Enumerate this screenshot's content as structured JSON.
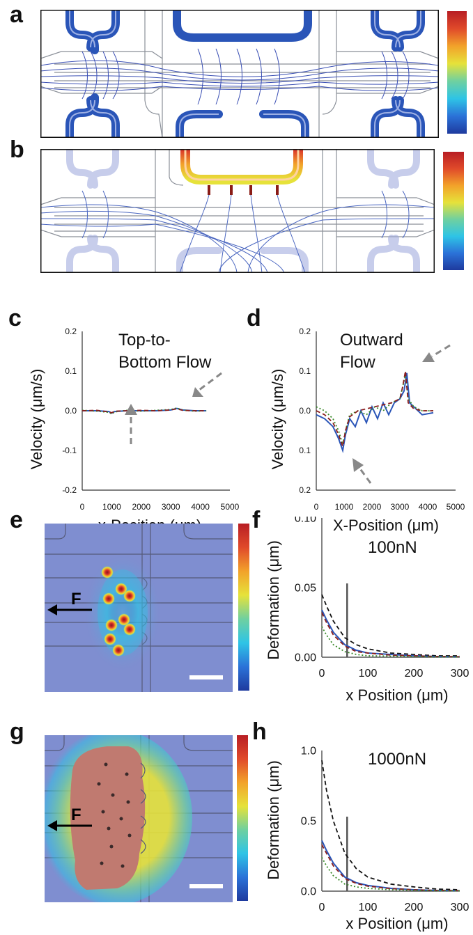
{
  "panels": {
    "a": {
      "letter": "a"
    },
    "b": {
      "letter": "b"
    },
    "c": {
      "letter": "c"
    },
    "d": {
      "letter": "d"
    },
    "e": {
      "letter": "e",
      "force_label": "F"
    },
    "f": {
      "letter": "f"
    },
    "g": {
      "letter": "g",
      "force_label": "F"
    },
    "h": {
      "letter": "h"
    }
  },
  "colors": {
    "channel_blue": "#2a55b8",
    "streamline_blue": "#3a4fb4",
    "substrate_blue": "#7f8ed0",
    "deformation_red": "#c07a70",
    "jet": [
      "#1e3a9e",
      "#2b72d8",
      "#2ec4e6",
      "#6fd0a0",
      "#e6e23a",
      "#f2a22a",
      "#d9302a",
      "#b81e24"
    ]
  },
  "chart_data": [
    {
      "panel": "c",
      "type": "line",
      "title": "Top-to- Bottom Flow",
      "title_lines": [
        "Top-to-",
        "Bottom Flow"
      ],
      "xlabel": "x-Position (μm)",
      "ylabel": "Velocity (μm/s)",
      "xlim": [
        0,
        5000
      ],
      "ylim": [
        -0.2,
        0.2
      ],
      "xticks": [
        "0",
        "1000",
        "2000",
        "3000",
        "4000",
        "5000"
      ],
      "yticks": [
        "0.2",
        "0.1",
        "0.0",
        "-0.1",
        "-0.2"
      ],
      "series": [
        {
          "color": "#2a55b8",
          "style": "solid",
          "x": [
            0,
            500,
            900,
            1000,
            1100,
            1500,
            2000,
            2500,
            3000,
            3200,
            3400,
            3800,
            4200
          ],
          "y": [
            0.0,
            0.0,
            -0.002,
            -0.006,
            -0.002,
            0.0,
            0.0,
            0.0,
            0.002,
            0.006,
            0.002,
            0.0,
            0.0
          ]
        },
        {
          "color": "#3a8a2a",
          "style": "dotted",
          "x": [
            0,
            500,
            900,
            1000,
            1100,
            1500,
            2000,
            2500,
            3000,
            3200,
            3400,
            3800,
            4200
          ],
          "y": [
            0.001,
            -0.001,
            -0.004,
            -0.008,
            -0.003,
            0.001,
            -0.001,
            0.001,
            0.003,
            0.007,
            0.002,
            -0.001,
            0.0
          ]
        },
        {
          "color": "#8a1e1e",
          "style": "dashed",
          "x": [
            0,
            500,
            900,
            1000,
            1100,
            1500,
            2000,
            2500,
            3000,
            3200,
            3400,
            3800,
            4200
          ],
          "y": [
            0.0,
            0.001,
            -0.003,
            -0.005,
            -0.001,
            0.0,
            0.001,
            0.0,
            0.002,
            0.005,
            0.001,
            0.0,
            0.0
          ]
        }
      ]
    },
    {
      "panel": "d",
      "type": "line",
      "title": "Outward Flow",
      "title_lines": [
        "Outward",
        "Flow"
      ],
      "xlabel": "X-Position (μm)",
      "ylabel": "Velocity (μm/s)",
      "xlim": [
        0,
        5000
      ],
      "ylim": [
        -0.2,
        0.2
      ],
      "xticks": [
        "0",
        "1000",
        "2000",
        "3000",
        "4000",
        "5000"
      ],
      "yticks": [
        "0.2",
        "0.1",
        "0.0",
        "0.1",
        "0.2"
      ],
      "series": [
        {
          "color": "#2a55b8",
          "style": "solid",
          "x": [
            0,
            300,
            600,
            800,
            950,
            1050,
            1200,
            1400,
            1600,
            1800,
            2000,
            2200,
            2400,
            2600,
            2800,
            3000,
            3150,
            3250,
            3350,
            3500,
            3800,
            4200
          ],
          "y": [
            -0.01,
            -0.02,
            -0.04,
            -0.07,
            -0.1,
            -0.06,
            -0.02,
            -0.04,
            0.0,
            -0.03,
            0.01,
            -0.02,
            0.02,
            -0.01,
            0.02,
            0.03,
            0.05,
            0.095,
            0.02,
            0.01,
            -0.01,
            -0.005
          ]
        },
        {
          "color": "#3a8a2a",
          "style": "dotted",
          "x": [
            0,
            300,
            600,
            800,
            950,
            1050,
            1200,
            1500,
            1800,
            2100,
            2400,
            2700,
            3000,
            3100,
            3200,
            3300,
            3500,
            3800,
            4200
          ],
          "y": [
            0.01,
            0.0,
            -0.02,
            -0.05,
            -0.085,
            -0.05,
            -0.01,
            0.0,
            -0.01,
            0.01,
            0.0,
            0.02,
            0.03,
            0.06,
            0.09,
            0.03,
            0.01,
            0.0,
            0.0
          ]
        },
        {
          "color": "#8a1e1e",
          "style": "dashed",
          "x": [
            0,
            300,
            600,
            800,
            950,
            1050,
            1200,
            1500,
            1800,
            2100,
            2400,
            2700,
            3000,
            3100,
            3200,
            3300,
            3500,
            3800,
            4200
          ],
          "y": [
            0.0,
            -0.01,
            -0.03,
            -0.06,
            -0.09,
            -0.05,
            -0.015,
            0.0,
            0.005,
            0.01,
            0.015,
            0.02,
            0.03,
            0.06,
            0.1,
            0.02,
            0.005,
            0.0,
            0.0
          ]
        }
      ]
    },
    {
      "panel": "f",
      "type": "line",
      "title": "100nN",
      "xlabel": "x Position (μm)",
      "ylabel": "Deformation (μm)",
      "xlim": [
        0,
        300
      ],
      "ylim": [
        0,
        0.1
      ],
      "xticks": [
        "0",
        "100",
        "200",
        "300"
      ],
      "yticks": [
        "0.10",
        "0.05",
        "0.00"
      ],
      "marker_x": 55,
      "series": [
        {
          "color": "#111111",
          "style": "dashed",
          "x": [
            0,
            10,
            25,
            50,
            75,
            100,
            150,
            200,
            250,
            300
          ],
          "y": [
            0.045,
            0.037,
            0.026,
            0.014,
            0.009,
            0.006,
            0.003,
            0.002,
            0.001,
            0.001
          ]
        },
        {
          "color": "#2a55b8",
          "style": "solid",
          "x": [
            0,
            10,
            25,
            50,
            75,
            100,
            150,
            200,
            250,
            300
          ],
          "y": [
            0.034,
            0.027,
            0.018,
            0.009,
            0.005,
            0.003,
            0.002,
            0.001,
            0.0005,
            0.0003
          ]
        },
        {
          "color": "#8a1e1e",
          "style": "dashed",
          "x": [
            0,
            10,
            25,
            50,
            75,
            100,
            150,
            200,
            250,
            300
          ],
          "y": [
            0.032,
            0.025,
            0.016,
            0.008,
            0.004,
            0.003,
            0.0015,
            0.001,
            0.0005,
            0.0003
          ]
        },
        {
          "color": "#3a8a2a",
          "style": "dotted",
          "x": [
            0,
            10,
            25,
            50,
            75,
            100,
            150,
            200,
            250,
            300
          ],
          "y": [
            0.022,
            0.016,
            0.009,
            0.004,
            0.002,
            0.001,
            0.0008,
            0.0005,
            0.0003,
            0.0002
          ]
        }
      ]
    },
    {
      "panel": "h",
      "type": "line",
      "title": "1000nN",
      "xlabel": "x Position (μm)",
      "ylabel": "Deformation (μm)",
      "xlim": [
        0,
        300
      ],
      "ylim": [
        0,
        1.0
      ],
      "xticks": [
        "0",
        "100",
        "200",
        "300"
      ],
      "yticks": [
        "1.0",
        "0.5",
        "0.0"
      ],
      "marker_x": 55,
      "series": [
        {
          "color": "#111111",
          "style": "dashed",
          "x": [
            0,
            10,
            25,
            50,
            75,
            100,
            150,
            200,
            250,
            300
          ],
          "y": [
            0.93,
            0.72,
            0.5,
            0.27,
            0.16,
            0.1,
            0.05,
            0.03,
            0.015,
            0.01
          ]
        },
        {
          "color": "#2a55b8",
          "style": "solid",
          "x": [
            0,
            10,
            25,
            50,
            75,
            100,
            150,
            200,
            250,
            300
          ],
          "y": [
            0.36,
            0.29,
            0.2,
            0.1,
            0.06,
            0.04,
            0.02,
            0.01,
            0.005,
            0.003
          ]
        },
        {
          "color": "#8a1e1e",
          "style": "dashed",
          "x": [
            0,
            10,
            25,
            50,
            75,
            100,
            150,
            200,
            250,
            300
          ],
          "y": [
            0.33,
            0.27,
            0.18,
            0.09,
            0.055,
            0.035,
            0.018,
            0.01,
            0.005,
            0.003
          ]
        },
        {
          "color": "#3a8a2a",
          "style": "dotted",
          "x": [
            0,
            10,
            25,
            50,
            75,
            100,
            150,
            200,
            250,
            300
          ],
          "y": [
            0.24,
            0.18,
            0.11,
            0.05,
            0.03,
            0.02,
            0.01,
            0.006,
            0.003,
            0.002
          ]
        }
      ]
    }
  ]
}
